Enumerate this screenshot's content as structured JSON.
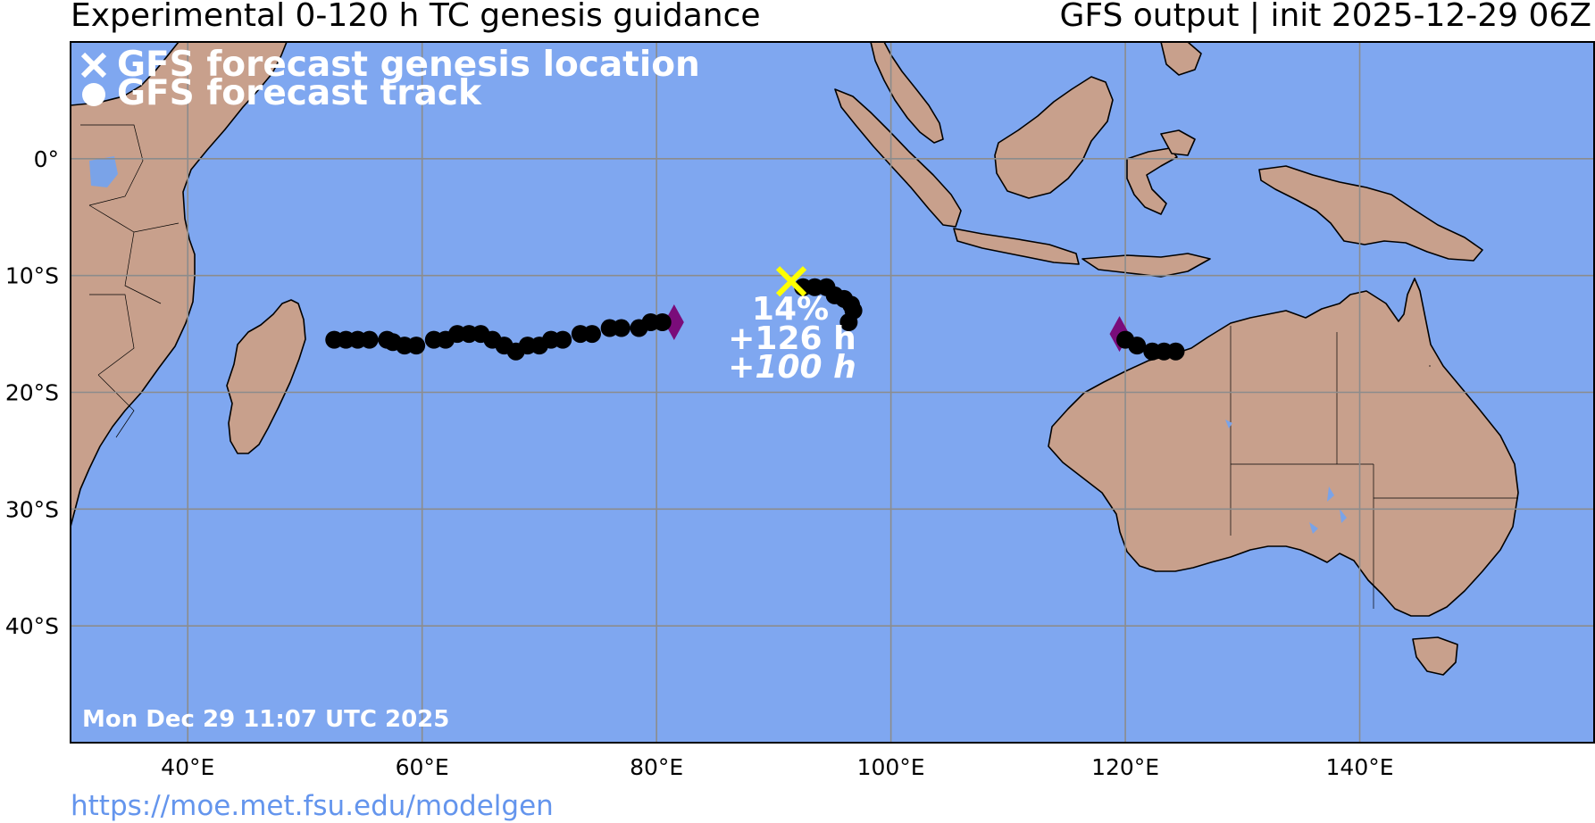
{
  "header": {
    "title_left": "Experimental 0-120 h TC genesis guidance",
    "title_right": "GFS output | init 2025-12-29 06Z"
  },
  "map": {
    "lon_range": [
      30,
      160
    ],
    "lat_range": [
      -50,
      10
    ],
    "ocean_color": "#7fa7f0",
    "land_color": "#c8a08c",
    "x_ticks": [
      {
        "lon": 40,
        "label": "40°E"
      },
      {
        "lon": 60,
        "label": "60°E"
      },
      {
        "lon": 80,
        "label": "80°E"
      },
      {
        "lon": 100,
        "label": "100°E"
      },
      {
        "lon": 120,
        "label": "120°E"
      },
      {
        "lon": 140,
        "label": "140°E"
      }
    ],
    "y_ticks": [
      {
        "lat": 0,
        "label": "0°"
      },
      {
        "lat": -10,
        "label": "10°S"
      },
      {
        "lat": -20,
        "label": "20°S"
      },
      {
        "lat": -30,
        "label": "30°S"
      },
      {
        "lat": -40,
        "label": "40°S"
      }
    ]
  },
  "legend": {
    "genesis_label": "GFS forecast genesis location",
    "track_label": "GFS forecast track",
    "genesis_symbol": "x-icon",
    "track_symbol": "dot-icon"
  },
  "timestamp": "Mon Dec 29 11:07 UTC 2025",
  "footer_url": "https://moe.met.fsu.edu/modelgen",
  "tracks": [
    {
      "name": "track-west",
      "color": "#000000",
      "end_marker_color": "#7a0c7a",
      "end_marker": [
        81.5,
        -14
      ],
      "points": [
        [
          52.5,
          -15.5
        ],
        [
          53.5,
          -15.5
        ],
        [
          54.5,
          -15.5
        ],
        [
          55.5,
          -15.5
        ],
        [
          57,
          -15.5
        ],
        [
          57.5,
          -15.7
        ],
        [
          58.5,
          -16
        ],
        [
          59.5,
          -16
        ],
        [
          61,
          -15.5
        ],
        [
          62,
          -15.5
        ],
        [
          63,
          -15
        ],
        [
          64,
          -15
        ],
        [
          65,
          -15
        ],
        [
          66,
          -15.5
        ],
        [
          67,
          -16
        ],
        [
          68,
          -16.5
        ],
        [
          69,
          -16
        ],
        [
          70,
          -16
        ],
        [
          71,
          -15.5
        ],
        [
          72,
          -15.5
        ],
        [
          73.5,
          -15
        ],
        [
          74.5,
          -15
        ],
        [
          76,
          -14.5
        ],
        [
          77,
          -14.5
        ],
        [
          78.5,
          -14.5
        ],
        [
          79.5,
          -14
        ],
        [
          80.5,
          -14
        ]
      ]
    },
    {
      "name": "track-central",
      "color": "#000000",
      "genesis": [
        91.5,
        -10.5
      ],
      "genesis_color": "#ffff00",
      "annotation": {
        "probability": "14%",
        "lead_time": "+126 h",
        "duration": "+100 h"
      },
      "points": [
        [
          92.5,
          -11
        ],
        [
          93.5,
          -11
        ],
        [
          94.5,
          -11
        ],
        [
          95.2,
          -11.7
        ],
        [
          96,
          -12
        ],
        [
          96.6,
          -12.5
        ],
        [
          96.8,
          -13
        ],
        [
          96.4,
          -14
        ]
      ]
    },
    {
      "name": "track-east",
      "color": "#000000",
      "end_marker_color": "#7a0c7a",
      "end_marker": [
        119.5,
        -15
      ],
      "points": [
        [
          120,
          -15.5
        ],
        [
          121,
          -16
        ],
        [
          122.3,
          -16.5
        ],
        [
          123.3,
          -16.5
        ],
        [
          124.3,
          -16.5
        ]
      ]
    }
  ]
}
